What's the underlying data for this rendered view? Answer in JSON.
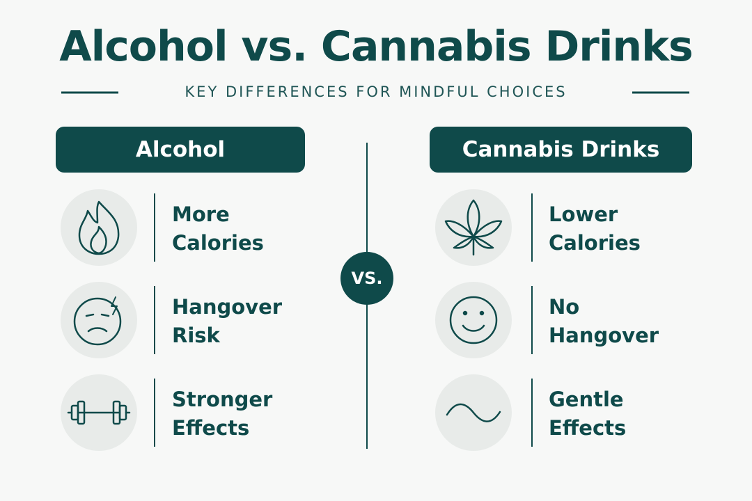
{
  "header": {
    "title": "Alcohol vs. Cannabis Drinks",
    "subtitle": "KEY DIFFERENCES FOR MINDFUL CHOICES"
  },
  "vs": "VS.",
  "columns": [
    {
      "heading": "Alcohol",
      "items": [
        {
          "label": "More Calories"
        },
        {
          "label": "Hangover Risk"
        },
        {
          "label": "Stronger Effects"
        }
      ]
    },
    {
      "heading": "Cannabis Drinks",
      "items": [
        {
          "label": "Lower Calories"
        },
        {
          "label": "No Hangover"
        },
        {
          "label": "Gentle Effects"
        }
      ]
    }
  ]
}
